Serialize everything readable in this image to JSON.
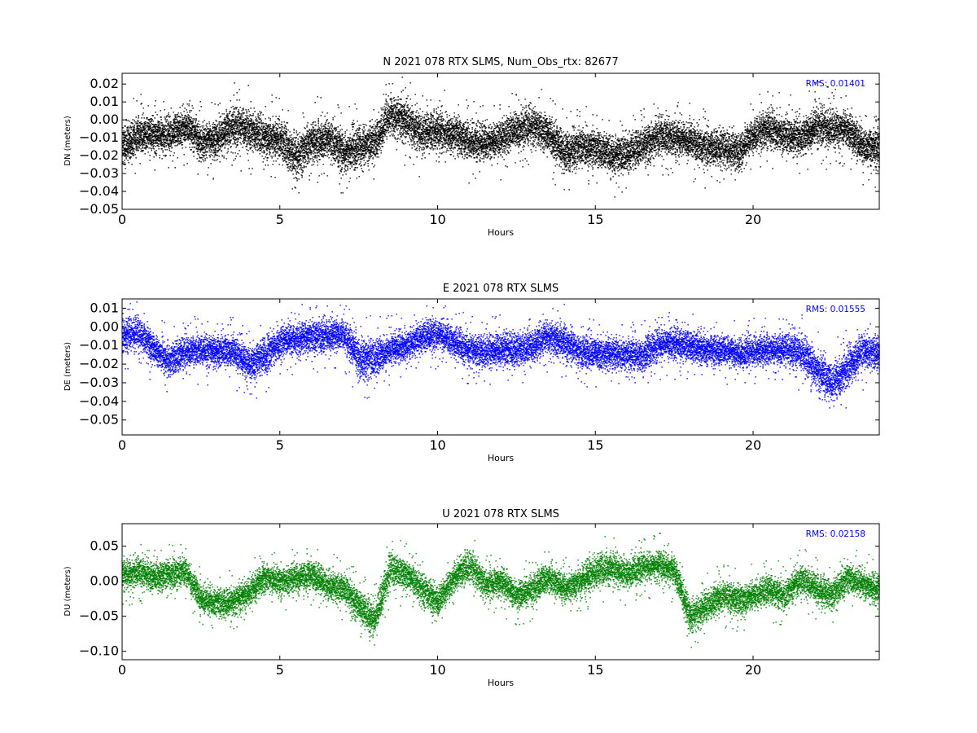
{
  "chart_data": [
    {
      "type": "scatter",
      "title": "N 2021 078 RTX  SLMS, Num_Obs_rtx: 82677",
      "xlabel": "Hours",
      "ylabel": "DN (meters)",
      "annotation": "RMS:  0.01401",
      "color": "#000000",
      "xlim": [
        0,
        24
      ],
      "ylim": [
        -0.05,
        0.026
      ],
      "xticks": [
        0,
        5,
        10,
        15,
        20
      ],
      "yticks": [
        0.02,
        0.01,
        0.0,
        -0.01,
        -0.02,
        -0.03,
        -0.04,
        -0.05
      ],
      "ytick_labels": [
        "0.02",
        "0.01",
        "0.00",
        "−0.01",
        "−0.02",
        "−0.03",
        "−0.04",
        "−0.05"
      ],
      "series": [
        {
          "x": [
            0,
            0.5,
            1,
            1.5,
            2,
            2.5,
            3,
            3.5,
            4,
            4.5,
            5,
            5.5,
            6,
            6.5,
            7,
            7.5,
            8,
            8.5,
            9,
            9.5,
            10,
            10.5,
            11,
            11.5,
            12,
            12.5,
            13,
            13.5,
            14,
            14.5,
            15,
            15.5,
            16,
            16.5,
            17,
            17.5,
            18,
            18.5,
            19,
            19.5,
            20,
            20.5,
            21,
            21.5,
            22,
            22.5,
            23,
            23.5,
            24
          ],
          "y": [
            -0.015,
            -0.008,
            -0.008,
            -0.008,
            -0.003,
            -0.012,
            -0.01,
            -0.003,
            -0.005,
            -0.01,
            -0.01,
            -0.02,
            -0.012,
            -0.01,
            -0.018,
            -0.015,
            -0.012,
            0.003,
            0.0,
            -0.008,
            -0.005,
            -0.008,
            -0.012,
            -0.012,
            -0.01,
            -0.005,
            -0.003,
            -0.008,
            -0.018,
            -0.015,
            -0.015,
            -0.02,
            -0.018,
            -0.015,
            -0.008,
            -0.01,
            -0.012,
            -0.015,
            -0.015,
            -0.018,
            -0.008,
            -0.005,
            -0.008,
            -0.01,
            -0.003,
            -0.005,
            -0.005,
            -0.015,
            -0.015
          ],
          "spread": [
            0.012,
            0.011,
            0.011,
            0.011,
            0.011,
            0.011,
            0.011,
            0.012,
            0.012,
            0.012,
            0.012,
            0.013,
            0.012,
            0.012,
            0.013,
            0.012,
            0.012,
            0.012,
            0.013,
            0.012,
            0.011,
            0.011,
            0.011,
            0.011,
            0.011,
            0.011,
            0.012,
            0.011,
            0.012,
            0.011,
            0.011,
            0.011,
            0.011,
            0.011,
            0.011,
            0.011,
            0.011,
            0.011,
            0.011,
            0.011,
            0.011,
            0.011,
            0.011,
            0.011,
            0.012,
            0.011,
            0.011,
            0.011,
            0.011
          ]
        }
      ]
    },
    {
      "type": "scatter",
      "title": "E 2021 078 RTX  SLMS",
      "xlabel": "Hours",
      "ylabel": "DE (meters)",
      "annotation": "RMS:  0.01555",
      "color": "#0000ff",
      "xlim": [
        0,
        24
      ],
      "ylim": [
        -0.058,
        0.015
      ],
      "xticks": [
        0,
        5,
        10,
        15,
        20
      ],
      "yticks": [
        0.01,
        0.0,
        -0.01,
        -0.02,
        -0.03,
        -0.04,
        -0.05
      ],
      "ytick_labels": [
        "0.01",
        "0.00",
        "−0.01",
        "−0.02",
        "−0.03",
        "−0.04",
        "−0.05"
      ],
      "series": [
        {
          "x": [
            0,
            0.5,
            1,
            1.5,
            2,
            2.5,
            3,
            3.5,
            4,
            4.5,
            5,
            5.5,
            6,
            6.5,
            7,
            7.5,
            8,
            8.5,
            9,
            9.5,
            10,
            10.5,
            11,
            11.5,
            12,
            12.5,
            13,
            13.5,
            14,
            14.5,
            15,
            15.5,
            16,
            16.5,
            17,
            17.5,
            18,
            18.5,
            19,
            19.5,
            20,
            20.5,
            21,
            21.5,
            22,
            22.5,
            23,
            23.5,
            24
          ],
          "y": [
            -0.005,
            -0.002,
            -0.012,
            -0.018,
            -0.013,
            -0.012,
            -0.013,
            -0.013,
            -0.02,
            -0.015,
            -0.008,
            -0.006,
            -0.005,
            -0.005,
            -0.003,
            -0.017,
            -0.016,
            -0.012,
            -0.01,
            -0.005,
            -0.003,
            -0.008,
            -0.012,
            -0.013,
            -0.012,
            -0.012,
            -0.01,
            -0.005,
            -0.008,
            -0.013,
            -0.014,
            -0.014,
            -0.015,
            -0.015,
            -0.009,
            -0.009,
            -0.01,
            -0.012,
            -0.012,
            -0.014,
            -0.013,
            -0.012,
            -0.012,
            -0.013,
            -0.023,
            -0.03,
            -0.022,
            -0.012,
            -0.015
          ],
          "spread": [
            0.009,
            0.009,
            0.009,
            0.009,
            0.009,
            0.009,
            0.009,
            0.009,
            0.01,
            0.011,
            0.009,
            0.009,
            0.009,
            0.009,
            0.009,
            0.011,
            0.011,
            0.009,
            0.009,
            0.009,
            0.009,
            0.009,
            0.009,
            0.009,
            0.009,
            0.009,
            0.009,
            0.009,
            0.01,
            0.009,
            0.009,
            0.009,
            0.009,
            0.009,
            0.009,
            0.009,
            0.009,
            0.009,
            0.009,
            0.009,
            0.009,
            0.009,
            0.009,
            0.01,
            0.011,
            0.011,
            0.011,
            0.01,
            0.009
          ]
        }
      ]
    },
    {
      "type": "scatter",
      "title": "U 2021 078 RTX  SLMS",
      "xlabel": "Hours",
      "ylabel": "DU (meters)",
      "annotation": "RMS:  0.02158",
      "color": "#008000",
      "xlim": [
        0,
        24
      ],
      "ylim": [
        -0.112,
        0.082
      ],
      "xticks": [
        0,
        5,
        10,
        15,
        20
      ],
      "yticks": [
        0.05,
        0.0,
        -0.05,
        -0.1
      ],
      "ytick_labels": [
        "0.05",
        "0.00",
        "−0.05",
        "−0.10"
      ],
      "series": [
        {
          "x": [
            0,
            0.5,
            1,
            1.5,
            2,
            2.5,
            3,
            3.5,
            4,
            4.5,
            5,
            5.5,
            6,
            6.5,
            7,
            7.5,
            8,
            8.5,
            9,
            9.5,
            10,
            10.5,
            11,
            11.5,
            12,
            12.5,
            13,
            13.5,
            14,
            14.5,
            15,
            15.5,
            16,
            16.5,
            17,
            17.5,
            18,
            18.5,
            19,
            19.5,
            20,
            20.5,
            21,
            21.5,
            22,
            22.5,
            23,
            23.5,
            24
          ],
          "y": [
            0.01,
            0.015,
            0.005,
            0.01,
            0.015,
            -0.025,
            -0.03,
            -0.03,
            -0.015,
            0.005,
            0.0,
            0.005,
            0.01,
            -0.005,
            -0.01,
            -0.035,
            -0.055,
            0.02,
            0.01,
            -0.01,
            -0.03,
            0.005,
            0.025,
            -0.005,
            0.0,
            -0.02,
            -0.01,
            0.005,
            -0.01,
            0.0,
            0.015,
            0.02,
            0.01,
            0.02,
            0.025,
            0.015,
            -0.05,
            -0.035,
            -0.02,
            -0.025,
            -0.02,
            -0.01,
            -0.02,
            0.005,
            -0.01,
            -0.02,
            0.005,
            -0.005,
            -0.01
          ],
          "spread": [
            0.022,
            0.022,
            0.022,
            0.022,
            0.022,
            0.022,
            0.022,
            0.022,
            0.022,
            0.022,
            0.022,
            0.022,
            0.022,
            0.022,
            0.022,
            0.025,
            0.028,
            0.026,
            0.022,
            0.022,
            0.024,
            0.022,
            0.024,
            0.022,
            0.022,
            0.022,
            0.022,
            0.022,
            0.022,
            0.022,
            0.024,
            0.024,
            0.022,
            0.022,
            0.022,
            0.022,
            0.024,
            0.022,
            0.022,
            0.022,
            0.022,
            0.022,
            0.022,
            0.022,
            0.022,
            0.022,
            0.022,
            0.022,
            0.022
          ]
        }
      ]
    }
  ]
}
